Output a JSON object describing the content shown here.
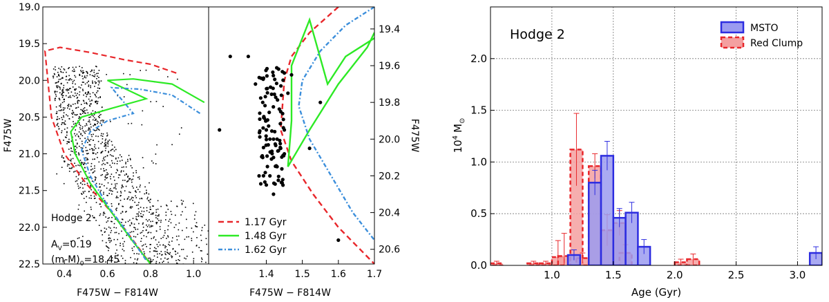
{
  "chart_data": [
    {
      "type": "scatter",
      "panel": "cmd-full",
      "xlabel": "F475W − F814W",
      "ylabel": "F475W",
      "xlim": [
        0.3,
        1.07
      ],
      "ylim": [
        22.5,
        19.0
      ],
      "xticks": [
        "0.4",
        "0.6",
        "0.8",
        "1.0"
      ],
      "yticks": [
        "19.0",
        "19.5",
        "20.0",
        "20.5",
        "21.0",
        "21.5",
        "22.0",
        "22.5"
      ],
      "annotations": [
        "Hodge 2",
        "A",
        "V",
        "=0.19",
        "(m-M)",
        "0",
        "=18.45"
      ],
      "series": [
        {
          "name": "1.17 Gyr",
          "style": "dashed",
          "color": "#e8262a",
          "x": [
            0.92,
            0.8,
            0.68,
            0.52,
            0.38,
            0.31,
            0.34,
            0.4,
            0.5,
            0.62,
            0.7,
            0.8
          ],
          "y": [
            19.9,
            19.78,
            19.72,
            19.62,
            19.55,
            19.6,
            20.5,
            21.0,
            21.4,
            21.8,
            22.1,
            22.5
          ]
        },
        {
          "name": "1.48 Gyr",
          "style": "solid",
          "color": "#2dea25",
          "x": [
            1.05,
            0.9,
            0.72,
            0.6,
            0.78,
            0.62,
            0.48,
            0.43,
            0.45,
            0.52,
            0.62,
            0.72,
            0.8
          ],
          "y": [
            20.3,
            20.05,
            19.98,
            20.0,
            20.25,
            20.38,
            20.5,
            20.7,
            21.0,
            21.4,
            21.8,
            22.2,
            22.5
          ]
        },
        {
          "name": "1.62 Gyr",
          "style": "dashdot",
          "color": "#3b8edb",
          "x": [
            1.03,
            0.9,
            0.75,
            0.62,
            0.72,
            0.6,
            0.52,
            0.48,
            0.52,
            0.6,
            0.7,
            0.78
          ],
          "y": [
            20.45,
            20.2,
            20.12,
            20.1,
            20.45,
            20.55,
            20.7,
            20.95,
            21.3,
            21.7,
            22.1,
            22.45
          ]
        }
      ]
    },
    {
      "type": "scatter",
      "panel": "cmd-zoom",
      "xlabel": "F475W − F814W",
      "ylabel": "F475W",
      "xlim": [
        1.24,
        1.7
      ],
      "ylim": [
        20.68,
        19.28
      ],
      "xticks": [
        "1.4",
        "1.5",
        "1.6",
        "1.7"
      ],
      "yticks": [
        "19.4",
        "19.6",
        "19.8",
        "20.0",
        "20.2",
        "20.4",
        "20.6"
      ],
      "legend": {
        "position": "bottom-left",
        "entries": [
          "1.17 Gyr",
          "1.48 Gyr",
          "1.62 Gyr"
        ]
      },
      "series": [
        {
          "name": "1.17 Gyr",
          "style": "dashed",
          "color": "#e8262a",
          "x": [
            1.6,
            1.52,
            1.47,
            1.45,
            1.44,
            1.47,
            1.53,
            1.6,
            1.66,
            1.7
          ],
          "y": [
            19.28,
            19.42,
            19.55,
            19.68,
            19.95,
            20.12,
            20.3,
            20.48,
            20.6,
            20.68
          ]
        },
        {
          "name": "1.48 Gyr",
          "style": "solid",
          "color": "#2dea25",
          "x": [
            1.7,
            1.62,
            1.57,
            1.52,
            1.47,
            1.47,
            1.46,
            1.52,
            1.6,
            1.68,
            1.7
          ],
          "y": [
            19.45,
            19.55,
            19.7,
            19.35,
            19.6,
            19.9,
            20.15,
            19.95,
            19.7,
            19.5,
            19.42
          ]
        },
        {
          "name": "1.62 Gyr",
          "style": "dashdot",
          "color": "#3b8edb",
          "x": [
            1.7,
            1.62,
            1.55,
            1.5,
            1.49,
            1.52,
            1.58,
            1.64,
            1.7
          ],
          "y": [
            19.28,
            19.38,
            19.52,
            19.68,
            19.82,
            20.0,
            20.2,
            20.4,
            20.55
          ]
        }
      ],
      "points": {
        "x": [
          1.35,
          1.37,
          1.39,
          1.4,
          1.41,
          1.42,
          1.43,
          1.44,
          1.45,
          1.38,
          1.4,
          1.42,
          1.44,
          1.46,
          1.47,
          1.4,
          1.39,
          1.41,
          1.43,
          1.45,
          1.3,
          1.27,
          1.52,
          1.55,
          1.6
        ],
        "y": [
          19.55,
          19.7,
          19.8,
          19.9,
          20.0,
          20.1,
          20.15,
          20.05,
          19.95,
          20.2,
          20.25,
          20.3,
          19.85,
          19.75,
          19.65,
          19.95,
          20.1,
          20.2,
          20.0,
          20.08,
          19.55,
          19.95,
          20.05,
          19.8,
          20.55
        ]
      }
    },
    {
      "type": "bar",
      "panel": "age-histogram",
      "title": "Hodge 2",
      "xlabel": "Age (Gyr)",
      "ylabel": "10",
      "ylabel_sup": "4",
      "ylabel_unit": "M",
      "ylabel_sun": "⊙",
      "xlim": [
        0.5,
        3.2
      ],
      "ylim": [
        0,
        2.5
      ],
      "xticks": [
        "1.0",
        "1.5",
        "2.0",
        "2.5",
        "3.0"
      ],
      "yticks": [
        "0.0",
        "0.5",
        "1.0",
        "1.5",
        "2.0"
      ],
      "grid": true,
      "legend": {
        "position": "top-right"
      },
      "series": [
        {
          "name": "MSTO",
          "color": "#2d2de0",
          "fill": "#9b9bf0",
          "style": "solid",
          "x": [
            1.18,
            1.35,
            1.45,
            1.55,
            1.65,
            1.75,
            3.15
          ],
          "values": [
            0.1,
            0.8,
            1.06,
            0.46,
            0.51,
            0.18,
            0.12
          ],
          "err": [
            0.05,
            0.12,
            0.14,
            0.09,
            0.1,
            0.07,
            0.06
          ]
        },
        {
          "name": "Red Clump",
          "color": "#e8262a",
          "fill": "#f4a0a0",
          "style": "dashed",
          "x": [
            0.55,
            0.85,
            0.95,
            1.05,
            1.1,
            1.2,
            1.25,
            1.35,
            1.45,
            1.55,
            1.6,
            2.05,
            2.15
          ],
          "values": [
            0.02,
            0.02,
            0.02,
            0.08,
            0.09,
            1.12,
            0.07,
            0.96,
            0.34,
            0.41,
            0.12,
            0.03,
            0.06
          ],
          "err": [
            0.02,
            0.02,
            0.02,
            0.16,
            0.22,
            0.35,
            0.05,
            0.12,
            0.15,
            0.12,
            0.08,
            0.03,
            0.05
          ]
        }
      ]
    }
  ]
}
